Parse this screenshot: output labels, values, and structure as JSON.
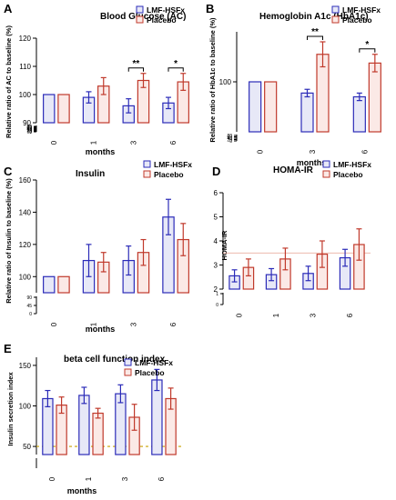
{
  "colors": {
    "treatment": "#2b2bb8",
    "placebo": "#c0392b",
    "treatment_fill": "#e7e8f7",
    "placebo_fill": "#fbe9e6",
    "ref_line": "#e8a090",
    "ref_dotted": "#c8a000"
  },
  "chart_data": [
    {
      "type": "bar",
      "panel": "A",
      "title": "Blood Glucose (AC)",
      "xlabel": "months",
      "ylabel": "Relative ratio of AC to baseline (%)",
      "categories": [
        "0",
        "1",
        "3",
        "6"
      ],
      "series": [
        {
          "name": "LMF-HSFx",
          "values": [
            100,
            99,
            96,
            97
          ],
          "errors": [
            0,
            2,
            2.5,
            2
          ]
        },
        {
          "name": "Placebo",
          "values": [
            100,
            103,
            105,
            104.5
          ],
          "errors": [
            0,
            3,
            2.5,
            3
          ]
        }
      ],
      "ylim": [
        90,
        120
      ],
      "y_ticks": [
        90,
        100,
        110,
        120
      ],
      "y_break_ticks": [
        "0",
        "10",
        "20",
        "30",
        "40",
        "50",
        "60",
        "70",
        "80"
      ],
      "significance": [
        {
          "category": "3",
          "label": "**"
        },
        {
          "category": "6",
          "label": "*"
        }
      ],
      "legend": "top-right"
    },
    {
      "type": "bar",
      "panel": "B",
      "title": "Hemoglobin A1c (HbA1c)",
      "xlabel": "months",
      "ylabel": "Relative ratio of HbA1c to baseline (%)",
      "categories": [
        "0",
        "3",
        "6"
      ],
      "series": [
        {
          "name": "LMF-HSFx",
          "values": [
            100,
            91,
            88
          ],
          "errors": [
            0,
            3,
            3
          ]
        },
        {
          "name": "Placebo",
          "values": [
            100,
            122,
            115
          ],
          "errors": [
            0,
            10,
            7
          ]
        }
      ],
      "ylim": [
        60,
        140
      ],
      "y_ticks": [
        100
      ],
      "y_break_ticks": [
        "0",
        "20",
        "40",
        "60",
        "80"
      ],
      "significance": [
        {
          "category": "3",
          "label": "**"
        },
        {
          "category": "6",
          "label": "*"
        }
      ],
      "legend": "top-right"
    },
    {
      "type": "bar",
      "panel": "C",
      "title": "Insulin",
      "xlabel": "months",
      "ylabel": "Relative ratio of Insulin to baseline (%)",
      "categories": [
        "0",
        "1",
        "3",
        "6"
      ],
      "series": [
        {
          "name": "LMF-HSFx",
          "values": [
            100,
            110,
            110,
            137
          ],
          "errors": [
            0,
            10,
            9,
            11
          ]
        },
        {
          "name": "Placebo",
          "values": [
            100,
            109,
            115,
            123
          ],
          "errors": [
            0,
            6,
            8,
            10
          ]
        }
      ],
      "ylim": [
        90,
        160
      ],
      "y_ticks": [
        100,
        120,
        140,
        160
      ],
      "y_break_ticks": [
        "0",
        "45",
        "90"
      ],
      "legend": "top-right"
    },
    {
      "type": "bar",
      "panel": "D",
      "title": "HOMA-IR",
      "xlabel": "",
      "ylabel": "HOMA-IR",
      "categories": [
        "0",
        "1",
        "3",
        "6"
      ],
      "series": [
        {
          "name": "LMF-HSFx",
          "values": [
            2.55,
            2.6,
            2.65,
            3.3
          ],
          "errors": [
            0.25,
            0.25,
            0.3,
            0.35
          ]
        },
        {
          "name": "Placebo",
          "values": [
            2.9,
            3.25,
            3.45,
            3.85
          ],
          "errors": [
            0.35,
            0.45,
            0.55,
            0.65
          ]
        }
      ],
      "ylim": [
        2,
        6
      ],
      "y_ticks": [
        2,
        3,
        4,
        5,
        6
      ],
      "y_break_ticks": [
        "0",
        "1"
      ],
      "reference_line": 3.5,
      "legend": "top-right"
    },
    {
      "type": "bar",
      "panel": "E",
      "title": "beta cell function index",
      "xlabel": "months",
      "ylabel": "Insulin secretion index",
      "categories": [
        "0",
        "1",
        "3",
        "6"
      ],
      "series": [
        {
          "name": "LMF-HSFx",
          "values": [
            109,
            113,
            115,
            132
          ],
          "errors": [
            10,
            10,
            11,
            13
          ]
        },
        {
          "name": "Placebo",
          "values": [
            101,
            91,
            86,
            109
          ],
          "errors": [
            10,
            6,
            16,
            13
          ]
        }
      ],
      "ylim": [
        40,
        160
      ],
      "y_ticks": [
        50,
        100,
        150
      ],
      "reference_line": 50,
      "legend": "top-right"
    }
  ]
}
